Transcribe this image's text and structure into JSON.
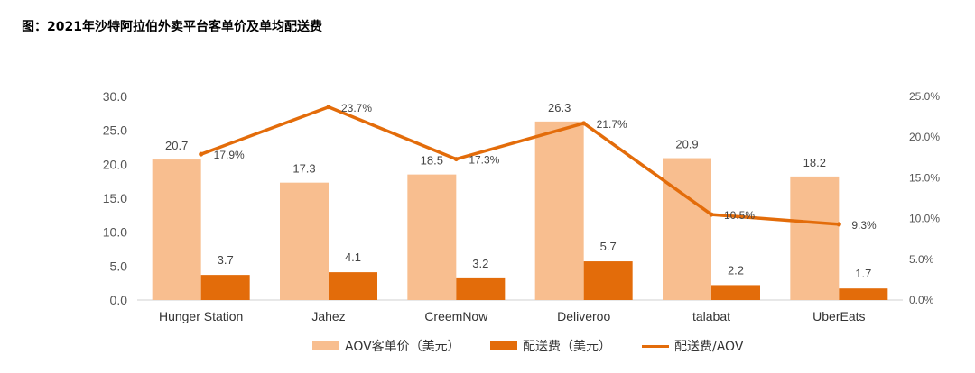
{
  "title": "图：2021年沙特阿拉伯外卖平台客单价及单均配送费",
  "colors": {
    "aov": "#F8BE8F",
    "fee": "#E36C0A",
    "ratio": "#E36C0A"
  },
  "chart_data": {
    "type": "bar",
    "title": "图：2021年沙特阿拉伯外卖平台客单价及单均配送费",
    "categories": [
      "Hunger Station",
      "Jahez",
      "CreemNow",
      "Deliveroo",
      "talabat",
      "UberEats"
    ],
    "series": [
      {
        "name": "AOV客单价（美元）",
        "type": "bar",
        "axis": "left",
        "values": [
          20.7,
          17.3,
          18.5,
          26.3,
          20.9,
          18.2
        ],
        "labels": [
          "20.7",
          "17.3",
          "18.5",
          "26.3",
          "20.9",
          "18.2"
        ]
      },
      {
        "name": "配送费（美元）",
        "type": "bar",
        "axis": "left",
        "values": [
          3.7,
          4.1,
          3.2,
          5.7,
          2.2,
          1.7
        ],
        "labels": [
          "3.7",
          "4.1",
          "3.2",
          "5.7",
          "2.2",
          "1.7"
        ]
      },
      {
        "name": "配送费/AOV",
        "type": "line",
        "axis": "right",
        "values": [
          17.9,
          23.7,
          17.3,
          21.7,
          10.5,
          9.3
        ],
        "labels": [
          "17.9%",
          "23.7%",
          "17.3%",
          "21.7%",
          "10.5%",
          "9.3%"
        ]
      }
    ],
    "left_axis": {
      "ylim": [
        0,
        30
      ],
      "ticks": [
        "0.0",
        "5.0",
        "10.0",
        "15.0",
        "20.0",
        "25.0",
        "30.0"
      ]
    },
    "right_axis": {
      "ylim": [
        0,
        25
      ],
      "ticks": [
        "0.0%",
        "5.0%",
        "10.0%",
        "15.0%",
        "20.0%",
        "25.0%"
      ]
    },
    "legend_position": "bottom",
    "grid": false
  }
}
